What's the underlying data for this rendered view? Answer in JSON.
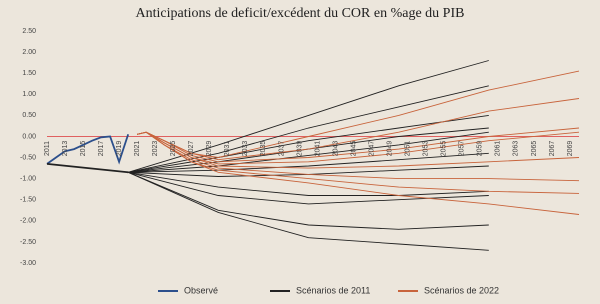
{
  "chart_data": {
    "type": "line",
    "title": "Anticipations de deficit/excédent du COR en %age du PIB",
    "xlim": [
      2011,
      2070
    ],
    "xticks": [
      2011,
      2013,
      2015,
      2017,
      2019,
      2021,
      2023,
      2025,
      2027,
      2029,
      2031,
      2033,
      2035,
      2037,
      2039,
      2041,
      2043,
      2045,
      2047,
      2049,
      2051,
      2053,
      2055,
      2057,
      2059,
      2061,
      2063,
      2065,
      2067,
      2069
    ],
    "ylim": [
      -3,
      2.5
    ],
    "yticks": [
      {
        "value": 2.5,
        "label": "2.50"
      },
      {
        "value": 2,
        "label": "2.00"
      },
      {
        "value": 1.5,
        "label": "1.50"
      },
      {
        "value": 1,
        "label": "1.00"
      },
      {
        "value": 0.5,
        "label": "0.50"
      },
      {
        "value": 0,
        "label": "0.00"
      },
      {
        "value": -0.5,
        "label": "-0.50"
      },
      {
        "value": -1,
        "label": "-1.00"
      },
      {
        "value": -1.5,
        "label": "-1.50"
      },
      {
        "value": -2,
        "label": "-2.00"
      },
      {
        "value": -2.5,
        "label": "-2.50"
      },
      {
        "value": -3,
        "label": "-3.00"
      }
    ],
    "zero_line_color": "#e06060",
    "legend": "bottom",
    "series": [
      {
        "name": "Observé",
        "color": "#2c4f8c",
        "lines": [
          {
            "x": [
              2011,
              2012,
              2013,
              2014,
              2015,
              2016,
              2017,
              2018,
              2019,
              2020
            ],
            "values": [
              -0.65,
              -0.5,
              -0.35,
              -0.3,
              -0.2,
              -0.1,
              -0.02,
              0,
              -0.6,
              0.05
            ]
          }
        ]
      },
      {
        "name": "Scénarios de 2011",
        "color": "#222222",
        "lines": [
          {
            "x": [
              2011,
              2020
            ],
            "values": [
              -0.65,
              -0.85
            ]
          },
          {
            "x": [
              2020,
              2030,
              2040,
              2050,
              2060
            ],
            "values": [
              -0.85,
              -0.2,
              0.5,
              1.2,
              1.8
            ]
          },
          {
            "x": [
              2020,
              2030,
              2040,
              2050,
              2060
            ],
            "values": [
              -0.85,
              -0.4,
              0.2,
              0.7,
              1.2
            ]
          },
          {
            "x": [
              2020,
              2030,
              2040,
              2050,
              2060
            ],
            "values": [
              -0.85,
              -0.5,
              -0.1,
              0.2,
              0.5
            ]
          },
          {
            "x": [
              2020,
              2030,
              2040,
              2050,
              2060
            ],
            "values": [
              -0.85,
              -0.6,
              -0.3,
              0,
              0.2
            ]
          },
          {
            "x": [
              2020,
              2030,
              2040,
              2050,
              2060
            ],
            "values": [
              -0.85,
              -0.7,
              -0.45,
              -0.2,
              0.1
            ]
          },
          {
            "x": [
              2020,
              2030,
              2040,
              2050,
              2060
            ],
            "values": [
              -0.85,
              -0.8,
              -0.7,
              -0.55,
              -0.4
            ]
          },
          {
            "x": [
              2020,
              2030,
              2040,
              2050,
              2060
            ],
            "values": [
              -0.85,
              -0.95,
              -0.9,
              -0.8,
              -0.7
            ]
          },
          {
            "x": [
              2020,
              2030,
              2040,
              2050,
              2060
            ],
            "values": [
              -0.85,
              -1.2,
              -1.4,
              -1.4,
              -1.3
            ]
          },
          {
            "x": [
              2020,
              2030,
              2040,
              2050,
              2060
            ],
            "values": [
              -0.85,
              -1.4,
              -1.6,
              -1.5,
              -1.4
            ]
          },
          {
            "x": [
              2020,
              2030,
              2040,
              2050,
              2060
            ],
            "values": [
              -0.85,
              -1.75,
              -2.1,
              -2.2,
              -2.1
            ]
          },
          {
            "x": [
              2020,
              2030,
              2040,
              2050,
              2060
            ],
            "values": [
              -0.85,
              -1.8,
              -2.4,
              -2.55,
              -2.7
            ]
          }
        ]
      },
      {
        "name": "Scénarios de 2022",
        "color": "#c8643c",
        "lines": [
          {
            "x": [
              2021,
              2022,
              2024,
              2027,
              2030,
              2040,
              2050,
              2060,
              2070
            ],
            "values": [
              0.05,
              0.1,
              -0.1,
              -0.4,
              -0.5,
              0,
              0.5,
              1.1,
              1.55
            ]
          },
          {
            "x": [
              2021,
              2022,
              2024,
              2027,
              2030,
              2040,
              2050,
              2060,
              2070
            ],
            "values": [
              0.05,
              0.1,
              -0.1,
              -0.4,
              -0.55,
              -0.3,
              0.1,
              0.6,
              0.9
            ]
          },
          {
            "x": [
              2021,
              2022,
              2024,
              2027,
              2030,
              2040,
              2050,
              2060,
              2070
            ],
            "values": [
              0.05,
              0.1,
              -0.1,
              -0.45,
              -0.6,
              -0.5,
              -0.3,
              0,
              0.2
            ]
          },
          {
            "x": [
              2021,
              2022,
              2024,
              2027,
              2030,
              2040,
              2050,
              2060,
              2070
            ],
            "values": [
              0.05,
              0.1,
              -0.15,
              -0.5,
              -0.65,
              -0.6,
              -0.4,
              -0.1,
              0.1
            ]
          },
          {
            "x": [
              2021,
              2022,
              2024,
              2027,
              2030,
              2040,
              2050,
              2060,
              2070
            ],
            "values": [
              0.05,
              0.1,
              -0.15,
              -0.5,
              -0.7,
              -0.75,
              -0.7,
              -0.6,
              -0.5
            ]
          },
          {
            "x": [
              2021,
              2022,
              2024,
              2027,
              2030,
              2040,
              2050,
              2060,
              2070
            ],
            "values": [
              0.05,
              0.1,
              -0.2,
              -0.55,
              -0.75,
              -0.9,
              -1,
              -1,
              -1.05
            ]
          },
          {
            "x": [
              2021,
              2022,
              2024,
              2027,
              2030,
              2040,
              2050,
              2060,
              2070
            ],
            "values": [
              0.05,
              0.1,
              -0.2,
              -0.6,
              -0.8,
              -1,
              -1.2,
              -1.3,
              -1.35
            ]
          },
          {
            "x": [
              2021,
              2022,
              2024,
              2027,
              2030,
              2040,
              2050,
              2060,
              2070
            ],
            "values": [
              0.05,
              0.1,
              -0.2,
              -0.6,
              -0.85,
              -1.1,
              -1.4,
              -1.6,
              -1.85
            ]
          }
        ]
      }
    ]
  }
}
